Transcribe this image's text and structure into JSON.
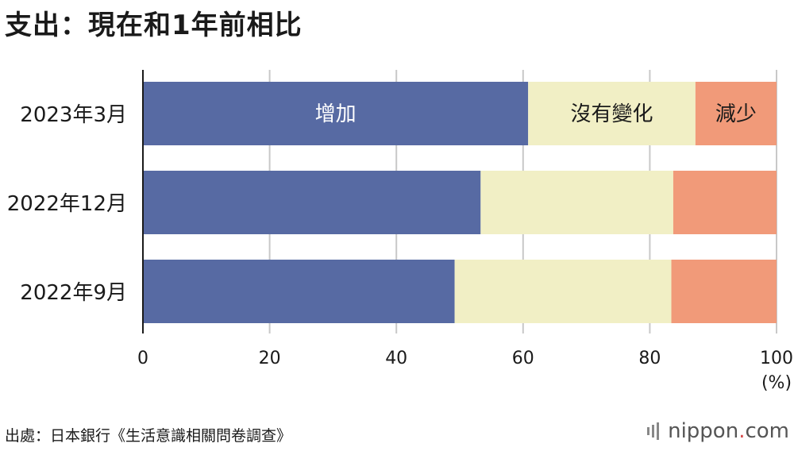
{
  "title": "支出：現在和1年前相比",
  "source": "出處：日本銀行《生活意識相關問卷調查》",
  "brand": {
    "name": "nippon",
    "dot": ".",
    "tld": "com"
  },
  "colors": {
    "increase": "#576aa3",
    "nochange": "#f1efc5",
    "decrease": "#f19a79",
    "grid": "#c8c8c8",
    "axis": "#1a1a1a"
  },
  "chart_data": {
    "type": "bar",
    "orientation": "horizontal",
    "stacked": true,
    "categories": [
      "2023年3月",
      "2022年12月",
      "2022年9月"
    ],
    "series": [
      {
        "name": "增加",
        "values": [
          60.8,
          53.3,
          49.2
        ]
      },
      {
        "name": "沒有變化",
        "values": [
          26.4,
          30.4,
          34.2
        ]
      },
      {
        "name": "減少",
        "values": [
          12.8,
          16.3,
          16.6
        ]
      }
    ],
    "xlim": [
      0,
      100
    ],
    "xticks": [
      "0",
      "20",
      "40",
      "60",
      "80",
      "100"
    ],
    "unit": "(%)",
    "grid": true,
    "legend": "inline labels on first bar"
  }
}
